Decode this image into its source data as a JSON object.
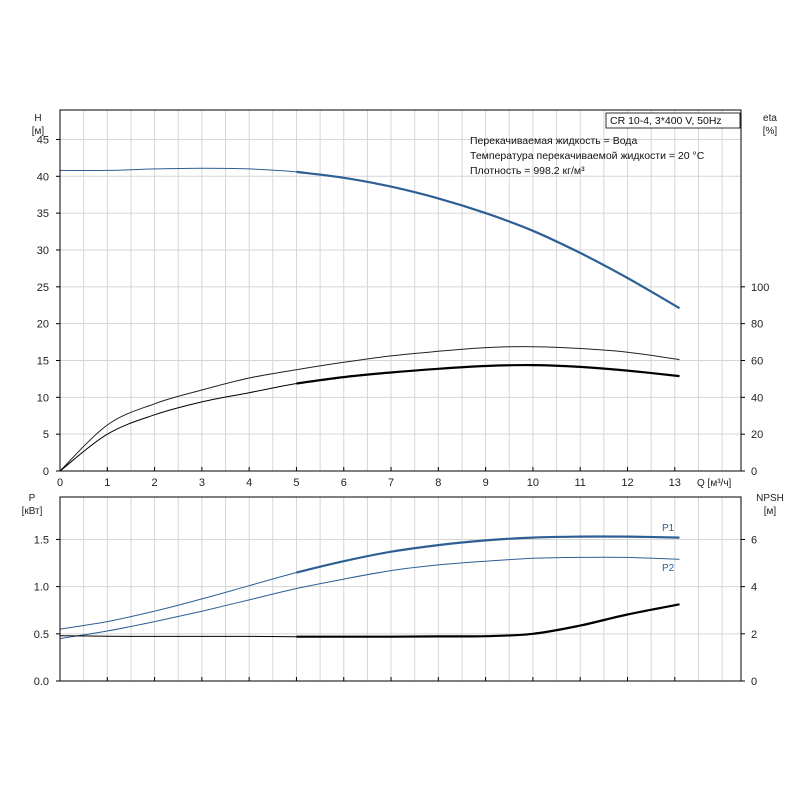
{
  "chart_data": [
    {
      "type": "line",
      "title": "CR 10-4, 3*400 V, 50Hz",
      "info_lines": [
        "Перекачиваемая жидкость = Вода",
        "Температура перекачиваемой жидкости = 20 °C",
        "Плотность = 998.2 кг/м³"
      ],
      "xlabel": "Q [м³/ч]",
      "ylabel": "H",
      "ylabel_unit": "[м]",
      "y2label": "eta",
      "y2label_unit": "[%]",
      "xlim": [
        0,
        14.4
      ],
      "ylim": [
        0,
        49
      ],
      "y2lim": [
        0,
        196
      ],
      "x_ticks": [
        "0",
        "1",
        "2",
        "3",
        "4",
        "5",
        "6",
        "7",
        "8",
        "9",
        "10",
        "11",
        "12",
        "13"
      ],
      "y_ticks": [
        "0",
        "5",
        "10",
        "15",
        "20",
        "25",
        "30",
        "35",
        "40",
        "45"
      ],
      "y2_ticks": [
        "0",
        "20",
        "40",
        "60",
        "80",
        "100"
      ],
      "grid": true,
      "series": [
        {
          "axis": "left",
          "color": "#2d5f95",
          "bold_from": 5,
          "x": [
            0,
            1,
            2,
            3,
            4,
            5,
            6,
            7,
            8,
            9,
            10,
            11,
            12,
            13.1
          ],
          "y": [
            40.8,
            40.8,
            41.0,
            41.1,
            41.0,
            40.6,
            39.8,
            38.6,
            37.0,
            35.0,
            32.6,
            29.6,
            26.2,
            22.1
          ]
        },
        {
          "axis": "right",
          "color": "#222222",
          "bold_from": 99,
          "x": [
            0,
            1,
            2,
            3,
            4,
            5,
            6,
            7,
            8,
            9,
            10,
            11,
            12,
            13.1
          ],
          "y": [
            0,
            25,
            36.5,
            44,
            50.5,
            55,
            59,
            62.5,
            65,
            67,
            67.5,
            66.5,
            64.5,
            60.5
          ]
        },
        {
          "axis": "right",
          "color": "#000000",
          "bold_from": 5,
          "x": [
            0,
            1,
            2,
            3,
            4,
            5,
            6,
            7,
            8,
            9,
            10,
            11,
            12,
            13.1
          ],
          "y": [
            0,
            20,
            30.5,
            37.5,
            42.5,
            47.5,
            51,
            53.5,
            55.5,
            57,
            57.5,
            56.5,
            54.5,
            51.5
          ]
        }
      ]
    },
    {
      "type": "line",
      "xlabel": "",
      "ylabel": "P",
      "ylabel_unit": "[кВт]",
      "y2label": "NPSH",
      "y2label_unit": "[м]",
      "xlim": [
        0,
        14.4
      ],
      "ylim": [
        0,
        1.95
      ],
      "y2lim": [
        0,
        7.8
      ],
      "y_ticks": [
        "0.0",
        "0.5",
        "1.0",
        "1.5"
      ],
      "y2_ticks": [
        "0",
        "2",
        "4",
        "6"
      ],
      "grid": true,
      "series": [
        {
          "name": "P1",
          "axis": "left",
          "color": "#2d5f95",
          "bold_from": 5,
          "x": [
            0,
            1,
            2,
            3,
            4,
            5,
            6,
            7,
            8,
            9,
            10,
            11,
            12,
            13.1
          ],
          "y": [
            0.55,
            0.63,
            0.74,
            0.87,
            1.01,
            1.15,
            1.27,
            1.37,
            1.44,
            1.49,
            1.52,
            1.53,
            1.53,
            1.52
          ]
        },
        {
          "name": "P2",
          "axis": "left",
          "color": "#2d5f95",
          "bold_from": 99,
          "x": [
            0,
            1,
            2,
            3,
            4,
            5,
            6,
            7,
            8,
            9,
            10,
            11,
            12,
            13.1
          ],
          "y": [
            0.45,
            0.53,
            0.63,
            0.74,
            0.86,
            0.98,
            1.08,
            1.17,
            1.23,
            1.27,
            1.3,
            1.31,
            1.31,
            1.29
          ]
        },
        {
          "axis": "right",
          "color": "#000000",
          "bold_from": 5,
          "x": [
            0,
            1,
            2,
            3,
            4,
            5,
            6,
            7,
            8,
            9,
            10,
            11,
            12,
            13.1
          ],
          "y": [
            1.92,
            1.9,
            1.89,
            1.89,
            1.89,
            1.88,
            1.88,
            1.88,
            1.89,
            1.9,
            2.0,
            2.35,
            2.82,
            3.25
          ]
        }
      ]
    }
  ]
}
